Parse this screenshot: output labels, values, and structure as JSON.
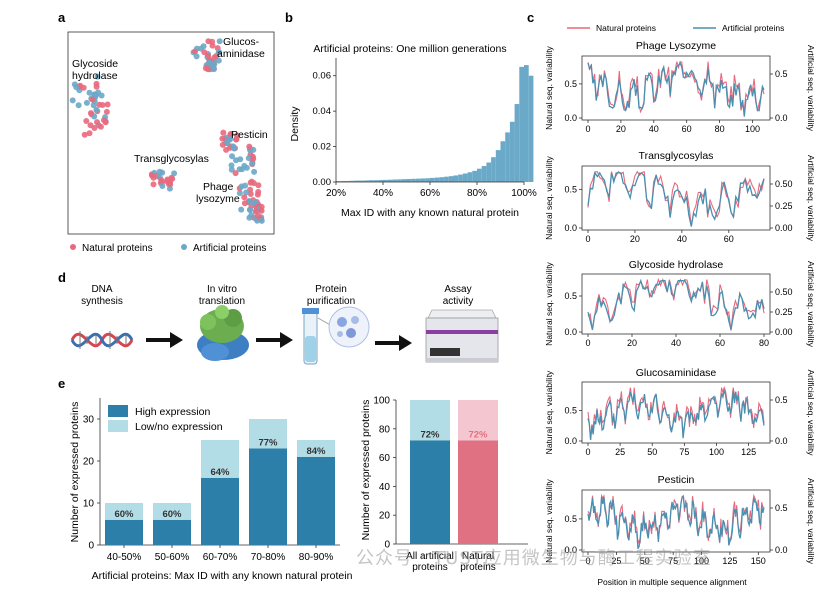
{
  "colors": {
    "natural": "#e8697d",
    "artificial": "#4a8fb0",
    "high": "#2b7fa8",
    "low": "#b3dde6",
    "nat_high": "#e07183",
    "nat_low": "#f4c6cf",
    "hist": "#6aa9c8"
  },
  "panel_labels": {
    "a": "a",
    "b": "b",
    "c": "c",
    "d": "d",
    "e": "e"
  },
  "panel_a": {
    "clusters": [
      "Glycoside hydrolase",
      "Glucos-aminidase",
      "Transglycosylas",
      "Pesticin",
      "Phage lysozyme"
    ],
    "cluster_lines": {
      "glyco": [
        "Glycoside",
        "hydrolase"
      ],
      "glucos": [
        "Glucos-",
        "aminidase"
      ],
      "trans": [
        "Transglycosylas"
      ],
      "pest": [
        "Pesticin"
      ],
      "phage": [
        "Phage",
        "lysozyme"
      ]
    },
    "legend": {
      "natural": "Natural proteins",
      "artificial": "Artificial proteins"
    }
  },
  "panel_b": {
    "chart_data": {
      "type": "bar",
      "title": "Artificial proteins: One million generations",
      "xlabel": "Max ID with any known natural protein",
      "ylabel": "Density",
      "xlim": [
        20,
        100
      ],
      "ylim": [
        0,
        0.07
      ],
      "xticks": [
        "20%",
        "40%",
        "60%",
        "80%",
        "100%"
      ],
      "yticks": [
        "0.00",
        "0.02",
        "0.04",
        "0.06"
      ],
      "bin_start": 20,
      "bin_width": 2,
      "values": [
        0.0005,
        0.0006,
        0.0006,
        0.0007,
        0.0008,
        0.0008,
        0.0009,
        0.001,
        0.001,
        0.0011,
        0.0012,
        0.0013,
        0.0014,
        0.0015,
        0.0016,
        0.0017,
        0.0018,
        0.0019,
        0.002,
        0.0021,
        0.0023,
        0.0025,
        0.0027,
        0.003,
        0.0033,
        0.0037,
        0.0042,
        0.0048,
        0.0055,
        0.0063,
        0.0075,
        0.009,
        0.011,
        0.014,
        0.018,
        0.023,
        0.028,
        0.034,
        0.044,
        0.065,
        0.066,
        0.06
      ]
    }
  },
  "panel_c": {
    "legend": {
      "natural": "Natural proteins",
      "artificial": "Artificial proteins"
    },
    "left_axis_label": "Natural seq. variability",
    "right_axis_label": "Artificial seq. variability",
    "xlabel": "Position in multiple sequence alignment",
    "chart_data": [
      {
        "type": "line",
        "title": "Phage Lysozyme",
        "xlim": [
          0,
          107
        ],
        "xticks": [
          0,
          20,
          40,
          60,
          80,
          100
        ],
        "left_ylim": [
          0,
          0.85
        ],
        "left_yticks": [
          "0.0",
          "0.5"
        ],
        "right_yticks": [
          "0.0",
          "0.5"
        ],
        "seed": 3
      },
      {
        "type": "line",
        "title": "Transglycosylas",
        "xlim": [
          0,
          75
        ],
        "xticks": [
          0,
          20,
          40,
          60
        ],
        "left_ylim": [
          0,
          0.75
        ],
        "left_yticks": [
          "0.0",
          "0.5"
        ],
        "right_yticks": [
          "0.00",
          "0.25",
          "0.50"
        ],
        "seed": 7
      },
      {
        "type": "line",
        "title": "Glycoside hydrolase",
        "xlim": [
          0,
          80
        ],
        "xticks": [
          0,
          20,
          40,
          60,
          80
        ],
        "left_ylim": [
          0,
          0.75
        ],
        "left_yticks": [
          "0.0",
          "0.5"
        ],
        "right_yticks": [
          "0.00",
          "0.25",
          "0.50"
        ],
        "seed": 11
      },
      {
        "type": "line",
        "title": "Glucosaminidase",
        "xlim": [
          0,
          137
        ],
        "xticks": [
          0,
          25,
          50,
          75,
          100,
          125
        ],
        "left_ylim": [
          0,
          0.9
        ],
        "left_yticks": [
          "0.0",
          "0.5"
        ],
        "right_yticks": [
          "0.0",
          "0.5"
        ],
        "seed": 5
      },
      {
        "type": "line",
        "title": "Pesticin",
        "xlim": [
          0,
          155
        ],
        "xticks": [
          0,
          25,
          50,
          75,
          100,
          125,
          150
        ],
        "left_ylim": [
          0,
          0.9
        ],
        "left_yticks": [
          "0.0",
          "0.5"
        ],
        "right_yticks": [
          "0.0",
          "0.5"
        ],
        "seed": 13
      }
    ]
  },
  "panel_d": {
    "steps": [
      {
        "lines": [
          "DNA",
          "synthesis"
        ]
      },
      {
        "lines": [
          "In vitro",
          "translation"
        ]
      },
      {
        "lines": [
          "Protein",
          "purification"
        ]
      },
      {
        "lines": [
          "Assay",
          "activity"
        ]
      }
    ]
  },
  "panel_e": {
    "left": {
      "chart_data": {
        "type": "bar",
        "categories": [
          "40-50%",
          "50-60%",
          "60-70%",
          "70-80%",
          "80-90%"
        ],
        "series": [
          {
            "name": "High expression",
            "values": [
              6,
              6,
              16,
              23,
              21
            ]
          },
          {
            "name": "Low/no expression",
            "values": [
              4,
              4,
              9,
              7,
              4
            ]
          }
        ],
        "labels": [
          "60%",
          "60%",
          "64%",
          "77%",
          "84%"
        ],
        "ylim": [
          0,
          35
        ],
        "yticks": [
          0,
          10,
          20,
          30
        ],
        "ylabel": "Number of expressed proteins",
        "xlabel": "Artificial proteins: Max ID with any known natural protein"
      }
    },
    "right": {
      "chart_data": {
        "type": "bar",
        "categories": [
          "All artificial proteins",
          "Natural proteins"
        ],
        "category_lines": [
          [
            "All artificial",
            "proteins"
          ],
          [
            "Natural",
            "proteins"
          ]
        ],
        "series": [
          {
            "name": "High expression",
            "values": [
              72,
              72
            ]
          },
          {
            "name": "Low/no expression",
            "values": [
              28,
              28
            ]
          }
        ],
        "labels": [
          "72%",
          "72%"
        ],
        "ylim": [
          0,
          100
        ],
        "yticks": [
          0,
          20,
          40,
          60,
          80,
          100
        ],
        "ylabel": "Number of expressed proteins"
      }
    }
  },
  "watermark": "公众号 · TUST应用微生物与酶工程实验室"
}
